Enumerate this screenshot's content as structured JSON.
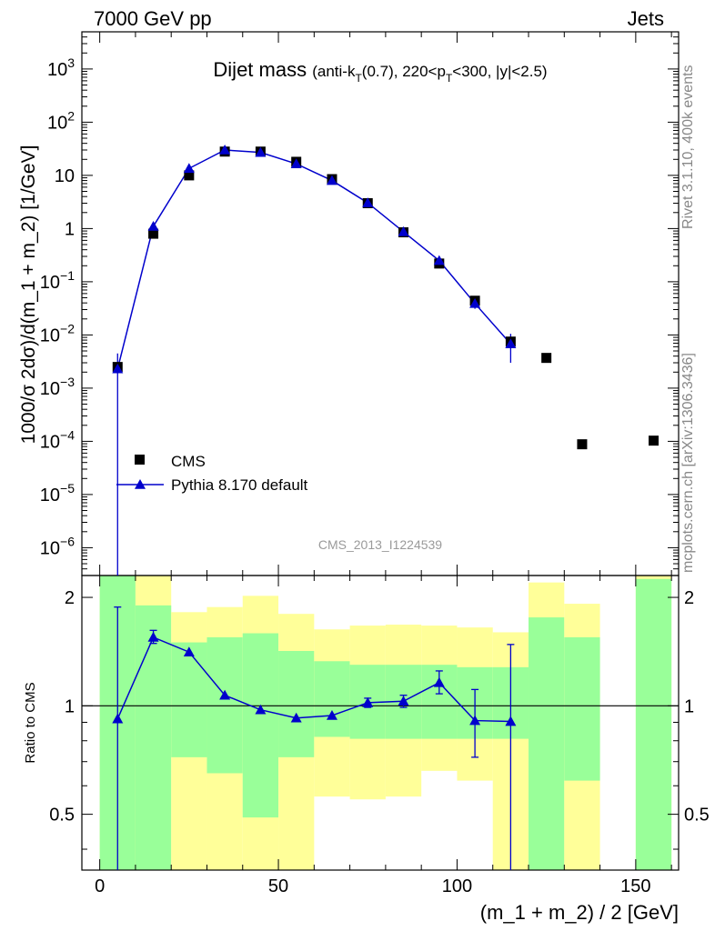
{
  "header": {
    "left": "7000 GeV pp",
    "right": "Jets"
  },
  "side": {
    "rivet": "Rivet 3.1.10,  400k events",
    "mcplots": "mcplots.cern.ch [arXiv:1306.3436]"
  },
  "colors": {
    "mc": "#0000cc",
    "data": "#000000",
    "band_inner": "#99ff99",
    "band_outer": "#ffff99"
  },
  "chart_data": [
    {
      "type": "scatter",
      "title": "Dijet mass",
      "title_sub": "(anti-k",
      "title_sub_k": "T",
      "title_sub2": "(0.7), 220<p",
      "title_sub_p": "T",
      "title_sub3": "<300, |y|<2.5)",
      "ylabel": "1000/σ 2dσ)/d(m_1 + m_2) [1/GeV]",
      "xlim": [
        -5,
        162
      ],
      "ylim": [
        3e-07,
        5000
      ],
      "yscale": "log",
      "watermark": "CMS_2013_I1224539",
      "legend": {
        "position": "bottom-left"
      },
      "y_tick_labels": [
        {
          "v": 1000.0,
          "mant": "10",
          "exp": "3"
        },
        {
          "v": 100.0,
          "mant": "10",
          "exp": "2"
        },
        {
          "v": 10,
          "mant": "10",
          "exp": ""
        },
        {
          "v": 1,
          "mant": "1",
          "exp": ""
        },
        {
          "v": 0.1,
          "mant": "10",
          "exp": "−1"
        },
        {
          "v": 0.01,
          "mant": "10",
          "exp": "−2"
        },
        {
          "v": 0.001,
          "mant": "10",
          "exp": "−3"
        },
        {
          "v": 0.0001,
          "mant": "10",
          "exp": "−4"
        },
        {
          "v": 1e-05,
          "mant": "10",
          "exp": "−5"
        },
        {
          "v": 1e-06,
          "mant": "10",
          "exp": "−6"
        }
      ],
      "series": [
        {
          "name": "CMS",
          "marker": "square",
          "points": [
            {
              "x": 5,
              "y": 0.0025
            },
            {
              "x": 15,
              "y": 0.8
            },
            {
              "x": 25,
              "y": 10
            },
            {
              "x": 35,
              "y": 28
            },
            {
              "x": 45,
              "y": 28
            },
            {
              "x": 55,
              "y": 18
            },
            {
              "x": 65,
              "y": 8.5
            },
            {
              "x": 75,
              "y": 3.0
            },
            {
              "x": 85,
              "y": 0.85
            },
            {
              "x": 95,
              "y": 0.22
            },
            {
              "x": 105,
              "y": 0.044
            },
            {
              "x": 115,
              "y": 0.0075
            },
            {
              "x": 125,
              "y": 0.0037
            },
            {
              "x": 135,
              "y": 8.8e-05
            },
            {
              "x": 155,
              "y": 0.000103
            }
          ]
        },
        {
          "name": "Pythia 8.170 default",
          "marker": "triangle",
          "line": true,
          "points": [
            {
              "x": 5,
              "y": 0.0023,
              "lo": 1e-09,
              "hi": 0.0045
            },
            {
              "x": 15,
              "y": 1.1,
              "lo": 0.95,
              "hi": 1.25
            },
            {
              "x": 25,
              "y": 13.5,
              "lo": 12.5,
              "hi": 14.5
            },
            {
              "x": 35,
              "y": 30,
              "lo": 28.5,
              "hi": 31.5
            },
            {
              "x": 45,
              "y": 27,
              "lo": 26,
              "hi": 28
            },
            {
              "x": 55,
              "y": 16.5,
              "lo": 15.8,
              "hi": 17.2
            },
            {
              "x": 65,
              "y": 8.0,
              "lo": 7.6,
              "hi": 8.4
            },
            {
              "x": 75,
              "y": 3.05,
              "lo": 2.9,
              "hi": 3.2
            },
            {
              "x": 85,
              "y": 0.87,
              "lo": 0.81,
              "hi": 0.93
            },
            {
              "x": 95,
              "y": 0.25,
              "lo": 0.22,
              "hi": 0.28
            },
            {
              "x": 105,
              "y": 0.039,
              "lo": 0.031,
              "hi": 0.048
            },
            {
              "x": 115,
              "y": 0.0068,
              "lo": 0.003,
              "hi": 0.0105
            }
          ]
        }
      ]
    },
    {
      "type": "scatter",
      "ylabel": "Ratio to CMS",
      "xlabel": "(m_1 + m_2) / 2 [GeV]",
      "xlim": [
        -5,
        162
      ],
      "ylim": [
        0.35,
        2.3
      ],
      "yscale": "log",
      "reference_line": 1,
      "y_ticks": [
        {
          "v": 2,
          "label": "2"
        },
        {
          "v": 1,
          "label": "1"
        },
        {
          "v": 0.5,
          "label": "0.5"
        }
      ],
      "x_ticks": [
        {
          "v": 0,
          "label": "0"
        },
        {
          "v": 50,
          "label": "50"
        },
        {
          "v": 100,
          "label": "100"
        },
        {
          "v": 150,
          "label": "150"
        }
      ],
      "bands": [
        {
          "x0": 0,
          "x1": 10,
          "in_lo": 0.3,
          "in_hi": 2.3,
          "out_lo": 0.3,
          "out_hi": 2.3
        },
        {
          "x0": 10,
          "x1": 20,
          "in_lo": 0.3,
          "in_hi": 1.9,
          "out_lo": 0.3,
          "out_hi": 2.3
        },
        {
          "x0": 20,
          "x1": 30,
          "in_lo": 0.72,
          "in_hi": 1.5,
          "out_lo": 0.3,
          "out_hi": 1.82
        },
        {
          "x0": 30,
          "x1": 40,
          "in_lo": 0.65,
          "in_hi": 1.55,
          "out_lo": 0.3,
          "out_hi": 1.88
        },
        {
          "x0": 40,
          "x1": 50,
          "in_lo": 0.49,
          "in_hi": 1.59,
          "out_lo": 0.3,
          "out_hi": 2.02
        },
        {
          "x0": 50,
          "x1": 60,
          "in_lo": 0.72,
          "in_hi": 1.42,
          "out_lo": 0.3,
          "out_hi": 1.8
        },
        {
          "x0": 60,
          "x1": 70,
          "in_lo": 0.82,
          "in_hi": 1.33,
          "out_lo": 0.56,
          "out_hi": 1.63
        },
        {
          "x0": 70,
          "x1": 80,
          "in_lo": 0.81,
          "in_hi": 1.3,
          "out_lo": 0.55,
          "out_hi": 1.67
        },
        {
          "x0": 80,
          "x1": 90,
          "in_lo": 0.81,
          "in_hi": 1.3,
          "out_lo": 0.56,
          "out_hi": 1.68
        },
        {
          "x0": 90,
          "x1": 100,
          "in_lo": 0.81,
          "in_hi": 1.3,
          "out_lo": 0.66,
          "out_hi": 1.67
        },
        {
          "x0": 100,
          "x1": 110,
          "in_lo": 0.81,
          "in_hi": 1.28,
          "out_lo": 0.62,
          "out_hi": 1.65
        },
        {
          "x0": 110,
          "x1": 120,
          "in_lo": 0.81,
          "in_hi": 1.28,
          "out_lo": 0.3,
          "out_hi": 1.6
        },
        {
          "x0": 120,
          "x1": 130,
          "in_lo": 0.3,
          "in_hi": 1.76,
          "out_lo": 0.3,
          "out_hi": 2.2
        },
        {
          "x0": 130,
          "x1": 140,
          "in_lo": 0.62,
          "in_hi": 1.55,
          "out_lo": 0.3,
          "out_hi": 1.92
        },
        {
          "x0": 150,
          "x1": 160,
          "in_lo": 0.3,
          "in_hi": 2.25,
          "out_lo": 0.3,
          "out_hi": 2.3
        }
      ],
      "series": [
        {
          "name": "Pythia 8.170 default",
          "marker": "triangle",
          "line": true,
          "points": [
            {
              "x": 5,
              "y": 0.92,
              "lo": 0.3,
              "hi": 1.88
            },
            {
              "x": 15,
              "y": 1.55,
              "lo": 1.49,
              "hi": 1.62
            },
            {
              "x": 25,
              "y": 1.41,
              "lo": 1.41,
              "hi": 1.41
            },
            {
              "x": 35,
              "y": 1.07,
              "lo": 1.07,
              "hi": 1.07
            },
            {
              "x": 45,
              "y": 0.975,
              "lo": 0.975,
              "hi": 0.975
            },
            {
              "x": 55,
              "y": 0.925,
              "lo": 0.925,
              "hi": 0.925
            },
            {
              "x": 65,
              "y": 0.94,
              "lo": 0.94,
              "hi": 0.94
            },
            {
              "x": 75,
              "y": 1.02,
              "lo": 0.99,
              "hi": 1.05
            },
            {
              "x": 85,
              "y": 1.03,
              "lo": 0.99,
              "hi": 1.07
            },
            {
              "x": 95,
              "y": 1.16,
              "lo": 1.08,
              "hi": 1.25
            },
            {
              "x": 105,
              "y": 0.91,
              "lo": 0.72,
              "hi": 1.11
            },
            {
              "x": 115,
              "y": 0.905,
              "lo": 0.3,
              "hi": 1.48
            }
          ]
        }
      ]
    }
  ]
}
